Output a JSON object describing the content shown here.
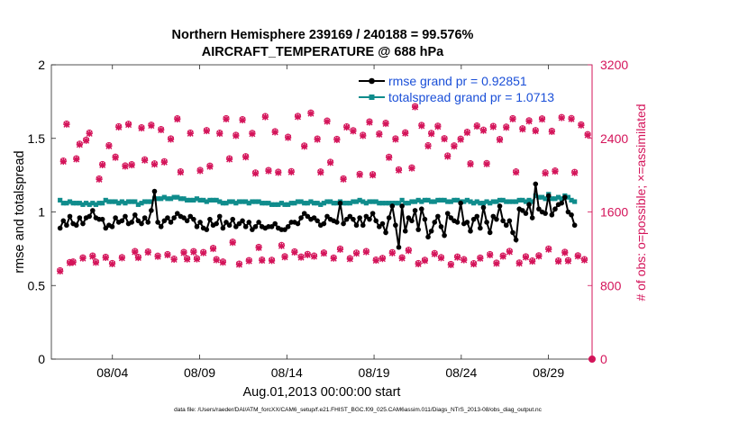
{
  "chart_data": {
    "type": "line",
    "title_line1": "Northern Hemisphere 239169 / 240188 = 99.576%",
    "title_line2": "AIRCRAFT_TEMPERATURE @ 688 hPa",
    "xlabel": "Aug.01,2013 00:00:00 start",
    "ylabel_left": "rmse and totalspread",
    "ylabel_right": "# of obs: o=possible; ×=assimilated",
    "footer": "data file: /Users/raeder/DAI/ATM_forcXX/CAM6_setup/f.e21.FHIST_BGC.f09_025.CAM6assim.011/Diags_NTrS_2013-08/obs_diag_output.nc",
    "x_range": [
      0.5,
      31.5
    ],
    "y_left_range": [
      0,
      2
    ],
    "y_right_range": [
      0,
      3200
    ],
    "x_ticks": [
      {
        "x": 4,
        "label": "08/04"
      },
      {
        "x": 9,
        "label": "08/09"
      },
      {
        "x": 14,
        "label": "08/14"
      },
      {
        "x": 19,
        "label": "08/19"
      },
      {
        "x": 24,
        "label": "08/24"
      },
      {
        "x": 29,
        "label": "08/29"
      }
    ],
    "y_left_ticks": [
      {
        "v": 0,
        "label": "0"
      },
      {
        "v": 0.5,
        "label": "0.5"
      },
      {
        "v": 1,
        "label": "1"
      },
      {
        "v": 1.5,
        "label": "1.5"
      },
      {
        "v": 2,
        "label": "2"
      }
    ],
    "y_right_ticks": [
      {
        "v": 0,
        "label": "0"
      },
      {
        "v": 800,
        "label": "800"
      },
      {
        "v": 1600,
        "label": "1600"
      },
      {
        "v": 2400,
        "label": "2400"
      },
      {
        "v": 3200,
        "label": "3200"
      }
    ],
    "legend_position": "top-right",
    "colors": {
      "rmse": "#000000",
      "totalspread": "#0f8c8c",
      "obs": "#d4145a",
      "axis": "#262626"
    },
    "series": [
      {
        "name": "rmse grand pr = 0.92851",
        "axis": "left",
        "values": [
          0.89,
          0.94,
          0.91,
          0.97,
          0.92,
          0.91,
          0.96,
          0.92,
          0.96,
          0.97,
          1.01,
          0.96,
          0.95,
          0.95,
          0.89,
          0.91,
          0.9,
          0.96,
          0.93,
          0.94,
          0.97,
          0.92,
          0.93,
          0.98,
          0.94,
          0.92,
          0.96,
          0.93,
          1.01,
          1.14,
          0.93,
          0.9,
          0.94,
          0.96,
          0.93,
          0.96,
          0.99,
          0.97,
          0.96,
          0.94,
          0.97,
          0.95,
          0.9,
          0.93,
          0.89,
          0.88,
          0.95,
          0.91,
          0.92,
          0.97,
          0.89,
          0.93,
          0.91,
          0.95,
          0.9,
          0.92,
          0.94,
          0.9,
          0.93,
          0.88,
          0.9,
          0.93,
          0.9,
          0.89,
          0.9,
          0.9,
          0.92,
          0.89,
          0.88,
          0.88,
          0.9,
          0.93,
          0.93,
          0.92,
          0.96,
          0.99,
          0.97,
          0.95,
          0.96,
          0.94,
          0.91,
          0.92,
          0.97,
          0.95,
          0.94,
          0.93,
          1.06,
          0.92,
          0.95,
          0.97,
          0.95,
          0.91,
          0.96,
          0.91,
          0.97,
          0.95,
          0.99,
          0.94,
          0.9,
          0.92,
          0.86,
          0.96,
          1.04,
          0.91,
          0.76,
          1.04,
          0.87,
          0.96,
          0.94,
          1.01,
          0.88,
          1.02,
          0.95,
          0.83,
          0.87,
          0.93,
          0.97,
          0.9,
          0.84,
          0.99,
          0.96,
          0.94,
          0.93,
          1.06,
          0.92,
          0.93,
          0.87,
          0.95,
          0.97,
          0.89,
          1.03,
          0.93,
          0.86,
          0.97,
          0.95,
          1.04,
          0.94,
          0.91,
          0.94,
          0.86,
          0.81,
          1.02,
          1.01,
          0.99,
          1.05,
          0.96,
          1.19,
          1.02,
          1,
          0.99,
          1.11,
          0.98,
          1.02,
          1.05,
          1.06,
          1.1,
          1,
          0.98,
          0.91
        ]
      },
      {
        "name": "totalspread grand pr = 1.0713",
        "axis": "left",
        "values": [
          1.08,
          1.06,
          1.06,
          1.07,
          1.06,
          1.06,
          1.06,
          1.05,
          1.06,
          1.05,
          1.06,
          1.05,
          1.06,
          1.06,
          1.08,
          1.07,
          1.07,
          1.07,
          1.06,
          1.07,
          1.06,
          1.07,
          1.07,
          1.07,
          1.05,
          1.06,
          1.07,
          1.07,
          1.07,
          1.09,
          1.09,
          1.09,
          1.1,
          1.09,
          1.09,
          1.1,
          1.1,
          1.09,
          1.09,
          1.08,
          1.08,
          1.08,
          1.09,
          1.08,
          1.08,
          1.07,
          1.08,
          1.08,
          1.08,
          1.07,
          1.06,
          1.06,
          1.07,
          1.07,
          1.06,
          1.07,
          1.07,
          1.07,
          1.06,
          1.07,
          1.07,
          1.07,
          1.06,
          1.06,
          1.06,
          1.05,
          1.05,
          1.05,
          1.06,
          1.05,
          1.05,
          1.06,
          1.06,
          1.07,
          1.07,
          1.06,
          1.06,
          1.07,
          1.06,
          1.06,
          1.05,
          1.06,
          1.07,
          1.07,
          1.06,
          1.06,
          1.07,
          1.06,
          1.06,
          1.06,
          1.07,
          1.07,
          1.08,
          1.07,
          1.06,
          1.07,
          1.07,
          1.07,
          1.06,
          1.06,
          1.06,
          1.06,
          1.06,
          1.06,
          1.06,
          1.08,
          1.06,
          1.06,
          1.07,
          1.07,
          1.08,
          1.07,
          1.08,
          1.08,
          1.07,
          1.07,
          1.08,
          1.08,
          1.08,
          1.07,
          1.07,
          1.08,
          1.08,
          1.07,
          1.07,
          1.08,
          1.07,
          1.06,
          1.07,
          1.06,
          1.06,
          1.07,
          1.06,
          1.07,
          1.07,
          1.08,
          1.08,
          1.07,
          1.07,
          1.07,
          1.07,
          1.08,
          1.08,
          1.07,
          1.08,
          1.07,
          1.11,
          1.1,
          1.1,
          1.09,
          1.12,
          1.09,
          1.09,
          1.1,
          1.09,
          1.11,
          1.1,
          1.08,
          1.07
        ]
      }
    ],
    "obs_counts": {
      "name": "obs",
      "axis": "right",
      "values": [
        955,
        2148,
        2551,
        1045,
        1051,
        2173,
        2331,
        1095,
        2375,
        2452,
        1116,
        1049,
        1954,
        2110,
        1102,
        2316,
        1034,
        2191,
        2521,
        1098,
        2095,
        2548,
        2109,
        1164,
        1101,
        2510,
        2161,
        1160,
        2538,
        2117,
        1114,
        2491,
        2141,
        1131,
        2389,
        1082,
        2608,
        2031,
        1155,
        1085,
        2453,
        1163,
        1086,
        2046,
        1154,
        2480,
        2093,
        1199,
        1077,
        2451,
        1051,
        2609,
        2173,
        1266,
        2428,
        1028,
        2598,
        2196,
        1066,
        2449,
        2018,
        1210,
        1072,
        2632,
        2045,
        1069,
        2467,
        2027,
        1230,
        1108,
        2407,
        2033,
        1161,
        2634,
        1105,
        2312,
        1133,
        2670,
        1115,
        2388,
        2029,
        1149,
        2583,
        2135,
        1094,
        2384,
        1191,
        1955,
        2520,
        1088,
        2478,
        1148,
        2004,
        2428,
        1164,
        2574,
        2000,
        1072,
        2443,
        1090,
        2559,
        2190,
        1152,
        2389,
        2053,
        1096,
        2455,
        1178,
        2074,
        2740,
        1034,
        2536,
        1069,
        2315,
        2449,
        1142,
        2527,
        1098,
        2392,
        2203,
        1024,
        2313,
        1105,
        2387,
        1076,
        2461,
        2119,
        1032,
        2530,
        1094,
        2484,
        2121,
        1131,
        2525,
        1039,
        2383,
        1116,
        2517,
        1166,
        2609,
        2030,
        1040,
        2499,
        1107,
        2586,
        1062,
        2479,
        1118,
        2607,
        2019,
        1192,
        2472,
        2040,
        1062,
        2622,
        1156,
        1066,
        2610,
        2025,
        1118,
        2542,
        1076,
        2436
      ]
    }
  }
}
